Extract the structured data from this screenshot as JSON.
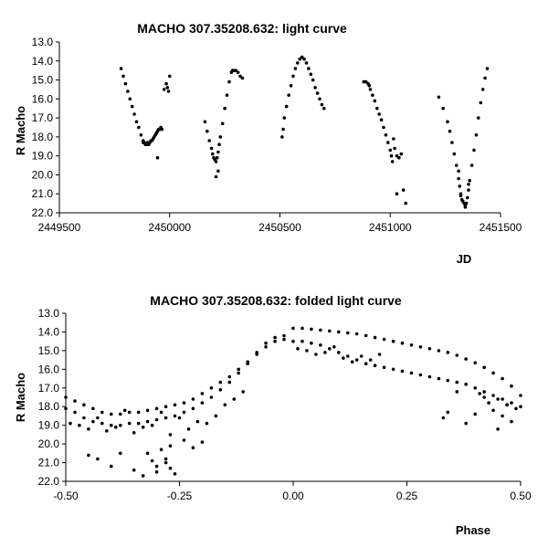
{
  "chart_data": [
    {
      "type": "scatter",
      "title": "MACHO 307.35208.632: light curve",
      "xlabel": "JD",
      "ylabel": "R Macho",
      "xlim": [
        2449500,
        2451500
      ],
      "ylim": [
        13.0,
        22.0
      ],
      "y_inverted": true,
      "grid": false,
      "legend": "none",
      "xticks": [
        "2449500",
        "2450000",
        "2450500",
        "2451000",
        "2451500"
      ],
      "yticks": [
        "13.0",
        "14.0",
        "15.0",
        "16.0",
        "17.0",
        "18.0",
        "19.0",
        "20.0",
        "21.0",
        "22.0"
      ],
      "series": [
        {
          "x": [
            2449780,
            2449790,
            2449800,
            2449810,
            2449820,
            2449830,
            2449840,
            2449850,
            2449860,
            2449870,
            2449880,
            2449885,
            2449890,
            2449895,
            2449900,
            2449905,
            2449910,
            2449915,
            2449920,
            2449925,
            2449930,
            2449935,
            2449940,
            2449945,
            2449950,
            2449955,
            2449960,
            2449965,
            2449975,
            2449985,
            2449990,
            2449995,
            2450000,
            2449945,
            2449880,
            2449900,
            2450160,
            2450170,
            2450180,
            2450190,
            2450195,
            2450200,
            2450205,
            2450210,
            2450215,
            2450220,
            2450225,
            2450230,
            2450240,
            2450250,
            2450260,
            2450270,
            2450280,
            2450285,
            2450290,
            2450300,
            2450310,
            2450320,
            2450330,
            2450210,
            2450220,
            2450510,
            2450515,
            2450520,
            2450530,
            2450540,
            2450550,
            2450560,
            2450570,
            2450580,
            2450590,
            2450600,
            2450610,
            2450620,
            2450630,
            2450640,
            2450650,
            2450660,
            2450670,
            2450680,
            2450690,
            2450700,
            2450880,
            2450890,
            2450900,
            2450905,
            2450910,
            2450920,
            2450930,
            2450940,
            2450950,
            2450960,
            2450970,
            2450980,
            2450990,
            2451000,
            2451005,
            2451010,
            2451015,
            2451020,
            2451030,
            2451040,
            2451050,
            2451060,
            2451070,
            2451030,
            2451220,
            2451240,
            2451260,
            2451270,
            2451280,
            2451290,
            2451300,
            2451310,
            2451315,
            2451320,
            2451325,
            2451330,
            2451335,
            2451340,
            2451345,
            2451350,
            2451355,
            2451360,
            2451370,
            2451380,
            2451390,
            2451400,
            2451410,
            2451420,
            2451430,
            2451440,
            2451320,
            2451340,
            2451355,
            2451310
          ],
          "y": [
            14.4,
            14.8,
            15.2,
            15.6,
            16.0,
            16.4,
            16.8,
            17.2,
            17.5,
            17.9,
            18.2,
            18.3,
            18.4,
            18.4,
            18.3,
            18.4,
            18.3,
            18.2,
            18.2,
            18.1,
            18.0,
            17.9,
            17.8,
            17.7,
            17.6,
            17.6,
            17.5,
            17.6,
            15.5,
            15.2,
            15.4,
            15.6,
            14.8,
            19.1,
            18.3,
            18.4,
            17.2,
            17.7,
            18.2,
            18.6,
            18.9,
            19.1,
            19.2,
            19.3,
            19.1,
            18.8,
            18.4,
            18.0,
            17.3,
            16.5,
            15.8,
            15.1,
            14.6,
            14.5,
            14.5,
            14.5,
            14.6,
            14.8,
            14.9,
            20.1,
            19.8,
            18.0,
            17.6,
            17.0,
            16.4,
            15.8,
            15.3,
            14.8,
            14.4,
            14.1,
            13.9,
            13.8,
            13.9,
            14.1,
            14.4,
            14.7,
            15.0,
            15.4,
            15.7,
            16.0,
            16.3,
            16.5,
            15.1,
            15.1,
            15.2,
            15.3,
            15.5,
            15.8,
            16.1,
            16.5,
            16.8,
            17.1,
            17.5,
            17.9,
            18.3,
            18.7,
            19.0,
            19.3,
            18.1,
            18.6,
            19.0,
            19.1,
            18.9,
            20.8,
            21.5,
            21.0,
            15.9,
            16.5,
            17.2,
            17.7,
            18.3,
            18.9,
            19.5,
            20.2,
            20.6,
            21.0,
            21.3,
            21.4,
            21.5,
            21.6,
            21.5,
            21.2,
            20.8,
            20.3,
            19.5,
            18.7,
            17.9,
            17.0,
            16.2,
            15.5,
            14.9,
            14.4,
            21.1,
            21.7,
            20.5,
            19.8
          ]
        }
      ]
    },
    {
      "type": "scatter",
      "title": "MACHO 307.35208.632: folded light curve",
      "xlabel": "Phase",
      "ylabel": "R Macho",
      "xlim": [
        -0.5,
        0.5
      ],
      "ylim": [
        13.0,
        22.0
      ],
      "y_inverted": true,
      "grid": false,
      "legend": "none",
      "xticks": [
        "-0.50",
        "-0.25",
        "0.00",
        "0.25",
        "0.50"
      ],
      "yticks": [
        "13.0",
        "14.0",
        "15.0",
        "16.0",
        "17.0",
        "18.0",
        "19.0",
        "20.0",
        "21.0",
        "22.0"
      ],
      "series": [
        {
          "x": [
            0.0,
            0.02,
            0.04,
            0.06,
            0.08,
            0.1,
            0.12,
            0.14,
            0.16,
            0.18,
            0.2,
            0.22,
            0.24,
            0.26,
            0.28,
            0.3,
            0.32,
            0.34,
            0.36,
            0.38,
            0.4,
            0.42,
            0.44,
            0.46,
            0.48,
            0.5,
            0.0,
            0.02,
            0.04,
            0.06,
            0.08,
            0.1,
            0.12,
            0.14,
            0.16,
            0.18,
            0.2,
            0.22,
            0.24,
            0.26,
            0.28,
            0.3,
            0.32,
            0.34,
            0.36,
            0.38,
            0.4,
            0.42,
            0.44,
            0.46,
            0.48,
            0.5,
            -0.5,
            -0.48,
            -0.46,
            -0.44,
            -0.42,
            -0.4,
            -0.38,
            -0.36,
            -0.34,
            -0.32,
            -0.3,
            -0.28,
            -0.26,
            -0.24,
            -0.22,
            -0.2,
            -0.18,
            -0.16,
            -0.14,
            -0.12,
            -0.1,
            -0.08,
            -0.06,
            -0.04,
            -0.02,
            -0.5,
            -0.48,
            -0.46,
            -0.44,
            -0.42,
            -0.4,
            -0.38,
            -0.36,
            -0.34,
            -0.32,
            -0.3,
            -0.28,
            -0.26,
            -0.24,
            -0.22,
            -0.2,
            -0.18,
            -0.16,
            -0.14,
            -0.12,
            -0.1,
            -0.08,
            -0.06,
            -0.04,
            -0.02,
            -0.49,
            -0.47,
            -0.45,
            -0.43,
            -0.41,
            -0.39,
            -0.37,
            -0.35,
            -0.33,
            -0.31,
            -0.29,
            -0.27,
            -0.25,
            -0.23,
            -0.21,
            -0.19,
            -0.17,
            -0.15,
            -0.13,
            -0.11,
            -0.45,
            -0.43,
            -0.4,
            -0.38,
            -0.35,
            -0.33,
            -0.31,
            -0.3,
            -0.29,
            -0.28,
            -0.27,
            -0.26,
            -0.24,
            -0.22,
            -0.2,
            -0.32,
            -0.3,
            -0.28,
            -0.27,
            0.01,
            0.03,
            0.05,
            0.07,
            0.09,
            0.11,
            0.13,
            0.15,
            0.17,
            0.19,
            0.41,
            0.42,
            0.43,
            0.44,
            0.45,
            0.46,
            0.47,
            0.48,
            0.49,
            0.4,
            0.38,
            0.36,
            0.34,
            0.33,
            0.45,
            0.47
          ],
          "y": [
            13.8,
            13.8,
            13.85,
            13.9,
            13.95,
            14.0,
            14.05,
            14.1,
            14.2,
            14.3,
            14.4,
            14.5,
            14.6,
            14.7,
            14.8,
            14.9,
            15.0,
            15.1,
            15.25,
            15.45,
            15.65,
            15.9,
            16.2,
            16.5,
            16.9,
            17.4,
            14.5,
            14.5,
            14.6,
            14.7,
            14.9,
            15.1,
            15.3,
            15.5,
            15.7,
            15.8,
            15.9,
            16.0,
            16.1,
            16.2,
            16.3,
            16.4,
            16.5,
            16.6,
            16.7,
            16.8,
            17.0,
            17.2,
            17.4,
            17.6,
            17.8,
            18.0,
            17.5,
            17.7,
            17.9,
            18.1,
            18.3,
            18.4,
            18.4,
            18.3,
            18.3,
            18.2,
            18.1,
            18.0,
            17.9,
            17.8,
            17.6,
            17.3,
            17.0,
            16.7,
            16.4,
            16.0,
            15.6,
            15.1,
            14.6,
            14.3,
            14.4,
            18.1,
            18.3,
            18.6,
            18.8,
            18.9,
            19.0,
            19.0,
            18.9,
            18.9,
            18.8,
            18.7,
            18.6,
            18.5,
            18.3,
            18.1,
            17.8,
            17.5,
            17.1,
            16.7,
            16.2,
            15.7,
            15.2,
            14.8,
            14.5,
            14.2,
            18.9,
            19.0,
            19.2,
            18.6,
            19.3,
            19.1,
            18.2,
            19.4,
            19.1,
            19.0,
            18.3,
            19.5,
            18.6,
            19.2,
            18.8,
            18.9,
            18.5,
            17.9,
            17.6,
            17.2,
            20.6,
            20.8,
            21.2,
            20.5,
            21.4,
            21.7,
            20.9,
            21.5,
            20.3,
            21.0,
            20.1,
            21.6,
            19.8,
            20.2,
            19.9,
            20.5,
            21.2,
            20.8,
            21.3,
            14.9,
            15.0,
            15.2,
            15.1,
            14.8,
            15.4,
            15.6,
            15.3,
            15.5,
            15.2,
            17.3,
            17.5,
            17.8,
            18.2,
            17.6,
            18.5,
            17.9,
            18.8,
            18.1,
            18.4,
            18.9,
            17.2,
            18.3,
            18.6,
            19.2,
            17.9
          ]
        }
      ]
    }
  ]
}
